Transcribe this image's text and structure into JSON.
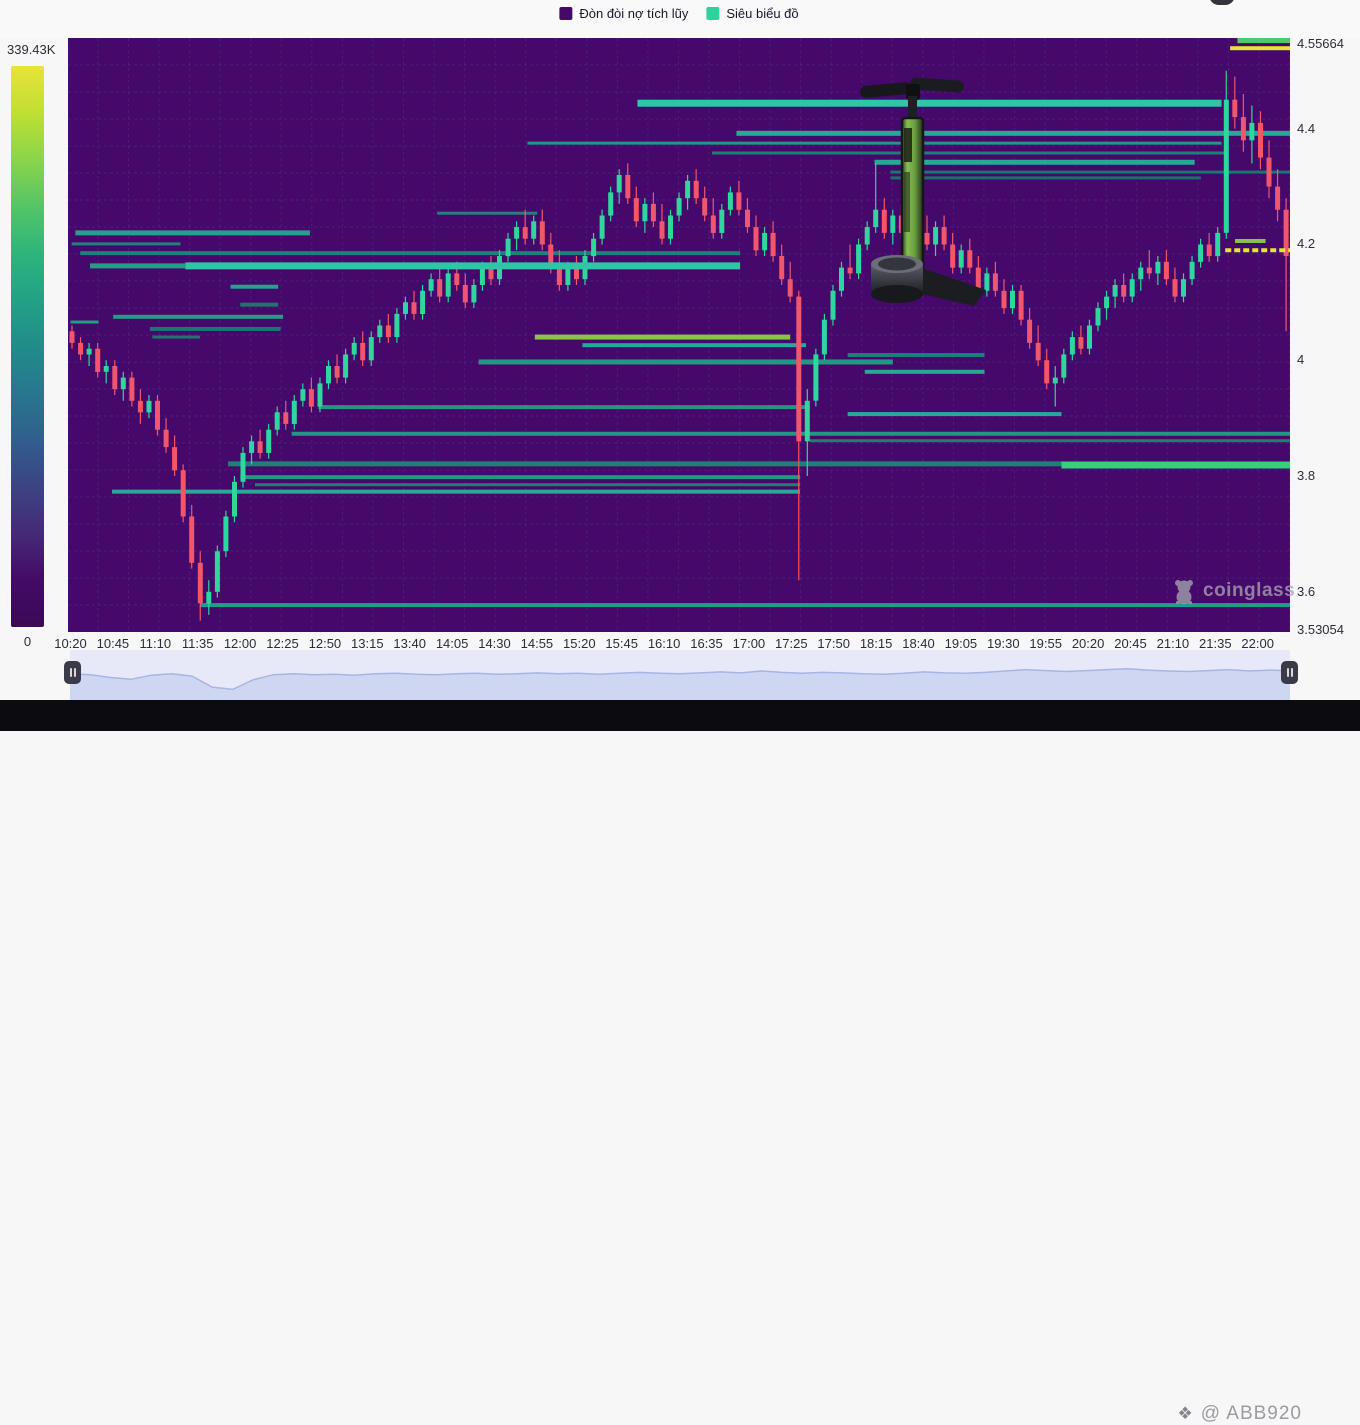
{
  "legend": {
    "items": [
      {
        "label": "Đòn đòi nợ tích lũy",
        "color": "#45096b"
      },
      {
        "label": "Siêu biểu đồ",
        "color": "#2bd49c"
      }
    ]
  },
  "colorbar": {
    "max_label": "339.43K",
    "min_label": "0",
    "gradient": [
      "#e8e337",
      "#c0df33",
      "#8bd54a",
      "#54c568",
      "#2fb47c",
      "#23a185",
      "#218c8a",
      "#27778e",
      "#315e8c",
      "#3d4382",
      "#452a77",
      "#440a67",
      "#3a0a54"
    ]
  },
  "watermarks": {
    "coinglass": "coinglass",
    "user": "@ ABB920",
    "gem_icon": "❖"
  },
  "chart_data": {
    "type": "candlestick-with-liquidation-heatmap-lines",
    "title": "",
    "price_axis": {
      "min": 3.53054,
      "max": 4.55664,
      "labels": [
        {
          "text": "4.55664",
          "price": 4.55664
        },
        {
          "text": "4.4",
          "price": 4.4
        },
        {
          "text": "4.2",
          "price": 4.2
        },
        {
          "text": "4",
          "price": 4.0
        },
        {
          "text": "3.8",
          "price": 3.8
        },
        {
          "text": "3.6",
          "price": 3.6
        },
        {
          "text": "3.53054",
          "price": 3.53054
        }
      ]
    },
    "x_labels": [
      "10:20",
      "10:45",
      "11:10",
      "11:35",
      "12:00",
      "12:25",
      "12:50",
      "13:15",
      "13:40",
      "14:05",
      "14:30",
      "14:55",
      "15:20",
      "15:45",
      "16:10",
      "16:35",
      "17:00",
      "17:25",
      "17:50",
      "18:15",
      "18:40",
      "19:05",
      "19:30",
      "19:55",
      "20:20",
      "20:45",
      "21:10",
      "21:35",
      "22:00"
    ],
    "colors": {
      "up": "#2fd69e",
      "down": "#f2566b",
      "background": "#45096b"
    },
    "candles": [
      [
        4.05,
        4.06,
        4.02,
        4.03
      ],
      [
        4.03,
        4.04,
        4.0,
        4.01
      ],
      [
        4.01,
        4.03,
        3.99,
        4.02
      ],
      [
        4.02,
        4.03,
        3.97,
        3.98
      ],
      [
        3.98,
        4.0,
        3.96,
        3.99
      ],
      [
        3.99,
        4.0,
        3.94,
        3.95
      ],
      [
        3.95,
        3.98,
        3.93,
        3.97
      ],
      [
        3.97,
        3.98,
        3.92,
        3.93
      ],
      [
        3.93,
        3.95,
        3.89,
        3.91
      ],
      [
        3.91,
        3.94,
        3.9,
        3.93
      ],
      [
        3.93,
        3.94,
        3.87,
        3.88
      ],
      [
        3.88,
        3.9,
        3.84,
        3.85
      ],
      [
        3.85,
        3.87,
        3.8,
        3.81
      ],
      [
        3.81,
        3.82,
        3.72,
        3.73
      ],
      [
        3.73,
        3.75,
        3.64,
        3.65
      ],
      [
        3.65,
        3.67,
        3.55,
        3.58
      ],
      [
        3.58,
        3.62,
        3.56,
        3.6
      ],
      [
        3.6,
        3.68,
        3.59,
        3.67
      ],
      [
        3.67,
        3.74,
        3.66,
        3.73
      ],
      [
        3.73,
        3.8,
        3.72,
        3.79
      ],
      [
        3.79,
        3.85,
        3.78,
        3.84
      ],
      [
        3.84,
        3.87,
        3.82,
        3.86
      ],
      [
        3.86,
        3.88,
        3.83,
        3.84
      ],
      [
        3.84,
        3.89,
        3.83,
        3.88
      ],
      [
        3.88,
        3.92,
        3.87,
        3.91
      ],
      [
        3.91,
        3.93,
        3.88,
        3.89
      ],
      [
        3.89,
        3.94,
        3.88,
        3.93
      ],
      [
        3.93,
        3.96,
        3.92,
        3.95
      ],
      [
        3.95,
        3.97,
        3.91,
        3.92
      ],
      [
        3.92,
        3.97,
        3.91,
        3.96
      ],
      [
        3.96,
        4.0,
        3.95,
        3.99
      ],
      [
        3.99,
        4.01,
        3.96,
        3.97
      ],
      [
        3.97,
        4.02,
        3.96,
        4.01
      ],
      [
        4.01,
        4.04,
        4.0,
        4.03
      ],
      [
        4.03,
        4.05,
        3.99,
        4.0
      ],
      [
        4.0,
        4.05,
        3.99,
        4.04
      ],
      [
        4.04,
        4.07,
        4.03,
        4.06
      ],
      [
        4.06,
        4.08,
        4.03,
        4.04
      ],
      [
        4.04,
        4.09,
        4.03,
        4.08
      ],
      [
        4.08,
        4.11,
        4.07,
        4.1
      ],
      [
        4.1,
        4.12,
        4.07,
        4.08
      ],
      [
        4.08,
        4.13,
        4.07,
        4.12
      ],
      [
        4.12,
        4.15,
        4.11,
        4.14
      ],
      [
        4.14,
        4.16,
        4.1,
        4.11
      ],
      [
        4.11,
        4.16,
        4.1,
        4.15
      ],
      [
        4.15,
        4.17,
        4.12,
        4.13
      ],
      [
        4.13,
        4.15,
        4.09,
        4.1
      ],
      [
        4.1,
        4.14,
        4.09,
        4.13
      ],
      [
        4.13,
        4.17,
        4.12,
        4.16
      ],
      [
        4.16,
        4.18,
        4.13,
        4.14
      ],
      [
        4.14,
        4.19,
        4.13,
        4.18
      ],
      [
        4.18,
        4.22,
        4.17,
        4.21
      ],
      [
        4.21,
        4.24,
        4.19,
        4.23
      ],
      [
        4.23,
        4.26,
        4.2,
        4.21
      ],
      [
        4.21,
        4.25,
        4.2,
        4.24
      ],
      [
        4.24,
        4.26,
        4.19,
        4.2
      ],
      [
        4.2,
        4.22,
        4.15,
        4.16
      ],
      [
        4.16,
        4.19,
        4.12,
        4.13
      ],
      [
        4.13,
        4.17,
        4.12,
        4.16
      ],
      [
        4.16,
        4.18,
        4.13,
        4.14
      ],
      [
        4.14,
        4.19,
        4.13,
        4.18
      ],
      [
        4.18,
        4.22,
        4.17,
        4.21
      ],
      [
        4.21,
        4.26,
        4.2,
        4.25
      ],
      [
        4.25,
        4.3,
        4.24,
        4.29
      ],
      [
        4.29,
        4.33,
        4.27,
        4.32
      ],
      [
        4.32,
        4.34,
        4.27,
        4.28
      ],
      [
        4.28,
        4.3,
        4.23,
        4.24
      ],
      [
        4.24,
        4.28,
        4.22,
        4.27
      ],
      [
        4.27,
        4.29,
        4.23,
        4.24
      ],
      [
        4.24,
        4.27,
        4.2,
        4.21
      ],
      [
        4.21,
        4.26,
        4.2,
        4.25
      ],
      [
        4.25,
        4.29,
        4.24,
        4.28
      ],
      [
        4.28,
        4.32,
        4.26,
        4.31
      ],
      [
        4.31,
        4.33,
        4.27,
        4.28
      ],
      [
        4.28,
        4.3,
        4.24,
        4.25
      ],
      [
        4.25,
        4.28,
        4.21,
        4.22
      ],
      [
        4.22,
        4.27,
        4.21,
        4.26
      ],
      [
        4.26,
        4.3,
        4.25,
        4.29
      ],
      [
        4.29,
        4.31,
        4.25,
        4.26
      ],
      [
        4.26,
        4.28,
        4.22,
        4.23
      ],
      [
        4.23,
        4.25,
        4.18,
        4.19
      ],
      [
        4.19,
        4.23,
        4.18,
        4.22
      ],
      [
        4.22,
        4.24,
        4.17,
        4.18
      ],
      [
        4.18,
        4.2,
        4.13,
        4.14
      ],
      [
        4.14,
        4.17,
        4.1,
        4.11
      ],
      [
        4.11,
        4.12,
        3.62,
        3.86
      ],
      [
        3.86,
        3.95,
        3.8,
        3.93
      ],
      [
        3.93,
        4.02,
        3.92,
        4.01
      ],
      [
        4.01,
        4.08,
        4.0,
        4.07
      ],
      [
        4.07,
        4.13,
        4.06,
        4.12
      ],
      [
        4.12,
        4.17,
        4.11,
        4.16
      ],
      [
        4.16,
        4.2,
        4.14,
        4.15
      ],
      [
        4.15,
        4.21,
        4.14,
        4.2
      ],
      [
        4.2,
        4.24,
        4.19,
        4.23
      ],
      [
        4.23,
        4.34,
        4.22,
        4.26
      ],
      [
        4.26,
        4.28,
        4.21,
        4.22
      ],
      [
        4.22,
        4.26,
        4.2,
        4.25
      ],
      [
        4.25,
        4.27,
        4.21,
        4.22
      ],
      [
        4.22,
        4.24,
        4.17,
        4.18
      ],
      [
        4.18,
        4.23,
        4.17,
        4.22
      ],
      [
        4.22,
        4.25,
        4.19,
        4.2
      ],
      [
        4.2,
        4.24,
        4.18,
        4.23
      ],
      [
        4.23,
        4.25,
        4.19,
        4.2
      ],
      [
        4.2,
        4.22,
        4.15,
        4.16
      ],
      [
        4.16,
        4.2,
        4.15,
        4.19
      ],
      [
        4.19,
        4.21,
        4.15,
        4.16
      ],
      [
        4.16,
        4.18,
        4.11,
        4.12
      ],
      [
        4.12,
        4.16,
        4.11,
        4.15
      ],
      [
        4.15,
        4.17,
        4.11,
        4.12
      ],
      [
        4.12,
        4.14,
        4.08,
        4.09
      ],
      [
        4.09,
        4.13,
        4.08,
        4.12
      ],
      [
        4.12,
        4.13,
        4.06,
        4.07
      ],
      [
        4.07,
        4.09,
        4.02,
        4.03
      ],
      [
        4.03,
        4.06,
        3.99,
        4.0
      ],
      [
        4.0,
        4.02,
        3.95,
        3.96
      ],
      [
        3.96,
        3.99,
        3.92,
        3.97
      ],
      [
        3.97,
        4.02,
        3.96,
        4.01
      ],
      [
        4.01,
        4.05,
        4.0,
        4.04
      ],
      [
        4.04,
        4.06,
        4.01,
        4.02
      ],
      [
        4.02,
        4.07,
        4.01,
        4.06
      ],
      [
        4.06,
        4.1,
        4.05,
        4.09
      ],
      [
        4.09,
        4.12,
        4.07,
        4.11
      ],
      [
        4.11,
        4.14,
        4.09,
        4.13
      ],
      [
        4.13,
        4.15,
        4.1,
        4.11
      ],
      [
        4.11,
        4.15,
        4.1,
        4.14
      ],
      [
        4.14,
        4.17,
        4.12,
        4.16
      ],
      [
        4.16,
        4.19,
        4.14,
        4.15
      ],
      [
        4.15,
        4.18,
        4.13,
        4.17
      ],
      [
        4.17,
        4.19,
        4.13,
        4.14
      ],
      [
        4.14,
        4.16,
        4.1,
        4.11
      ],
      [
        4.11,
        4.15,
        4.1,
        4.14
      ],
      [
        4.14,
        4.18,
        4.13,
        4.17
      ],
      [
        4.17,
        4.21,
        4.16,
        4.2
      ],
      [
        4.2,
        4.22,
        4.17,
        4.18
      ],
      [
        4.18,
        4.23,
        4.17,
        4.22
      ],
      [
        4.22,
        4.5,
        4.21,
        4.45
      ],
      [
        4.45,
        4.49,
        4.4,
        4.42
      ],
      [
        4.42,
        4.46,
        4.36,
        4.38
      ],
      [
        4.38,
        4.44,
        4.34,
        4.41
      ],
      [
        4.41,
        4.43,
        4.33,
        4.35
      ],
      [
        4.35,
        4.38,
        4.28,
        4.3
      ],
      [
        4.3,
        4.33,
        4.24,
        4.26
      ],
      [
        4.26,
        4.28,
        4.05,
        4.18
      ]
    ],
    "liquidation_lines": [
      {
        "price": 4.553,
        "x0": 0.957,
        "x1": 1.0,
        "h": 6,
        "color": "#55c76a",
        "front": true
      },
      {
        "price": 4.539,
        "x0": 0.951,
        "x1": 1.0,
        "h": 4,
        "color": "#e8e337",
        "front": true
      },
      {
        "price": 4.444,
        "x0": 0.466,
        "x1": 0.944,
        "h": 7,
        "color": "#2cc8a5",
        "front": true
      },
      {
        "price": 4.392,
        "x0": 0.547,
        "x1": 1.0,
        "h": 5,
        "color": "#28a995"
      },
      {
        "price": 4.375,
        "x0": 0.376,
        "x1": 0.944,
        "h": 3,
        "color": "#259684"
      },
      {
        "price": 4.358,
        "x0": 0.527,
        "x1": 0.947,
        "h": 3,
        "color": "#1f7e77"
      },
      {
        "price": 4.342,
        "x0": 0.66,
        "x1": 0.922,
        "h": 5,
        "color": "#28a995"
      },
      {
        "price": 4.325,
        "x0": 0.673,
        "x1": 1.0,
        "h": 3,
        "color": "#1e746f"
      },
      {
        "price": 4.315,
        "x0": 0.673,
        "x1": 0.927,
        "h": 3,
        "color": "#1d6e6b"
      },
      {
        "price": 4.254,
        "x0": 0.302,
        "x1": 0.384,
        "h": 3,
        "color": "#20837a"
      },
      {
        "price": 4.22,
        "x0": 0.006,
        "x1": 0.198,
        "h": 5,
        "color": "#279f8b"
      },
      {
        "price": 4.201,
        "x0": 0.003,
        "x1": 0.092,
        "h": 3,
        "color": "#20837a"
      },
      {
        "price": 4.185,
        "x0": 0.01,
        "x1": 0.55,
        "h": 4,
        "color": "#217f78"
      },
      {
        "price": 4.163,
        "x0": 0.018,
        "x1": 0.096,
        "h": 5,
        "color": "#279b89"
      },
      {
        "price": 4.163,
        "x0": 0.096,
        "x1": 0.55,
        "h": 7,
        "color": "#2cc8a5",
        "front": true
      },
      {
        "price": 4.127,
        "x0": 0.133,
        "x1": 0.172,
        "h": 4,
        "color": "#28a18d"
      },
      {
        "price": 4.096,
        "x0": 0.141,
        "x1": 0.172,
        "h": 4,
        "color": "#1e746f"
      },
      {
        "price": 4.075,
        "x0": 0.037,
        "x1": 0.176,
        "h": 4,
        "color": "#279b89"
      },
      {
        "price": 4.066,
        "x0": 0.002,
        "x1": 0.025,
        "h": 3,
        "color": "#279b89"
      },
      {
        "price": 4.054,
        "x0": 0.067,
        "x1": 0.174,
        "h": 4,
        "color": "#1e746f"
      },
      {
        "price": 4.04,
        "x0": 0.069,
        "x1": 0.108,
        "h": 3,
        "color": "#1e746f"
      },
      {
        "price": 4.04,
        "x0": 0.382,
        "x1": 0.591,
        "h": 5,
        "color": "#8bc34a",
        "front": true
      },
      {
        "price": 4.026,
        "x0": 0.421,
        "x1": 0.604,
        "h": 4,
        "color": "#28a995"
      },
      {
        "price": 4.009,
        "x0": 0.638,
        "x1": 0.75,
        "h": 4,
        "color": "#1f7e77"
      },
      {
        "price": 3.997,
        "x0": 0.336,
        "x1": 0.675,
        "h": 5,
        "color": "#259684"
      },
      {
        "price": 3.98,
        "x0": 0.652,
        "x1": 0.75,
        "h": 4,
        "color": "#28a995"
      },
      {
        "price": 3.919,
        "x0": 0.205,
        "x1": 0.607,
        "h": 4,
        "color": "#259684"
      },
      {
        "price": 3.907,
        "x0": 0.638,
        "x1": 0.813,
        "h": 4,
        "color": "#28a995"
      },
      {
        "price": 3.873,
        "x0": 0.183,
        "x1": 1.0,
        "h": 4,
        "color": "#259684"
      },
      {
        "price": 3.861,
        "x0": 0.607,
        "x1": 1.0,
        "h": 3,
        "color": "#1f7e77"
      },
      {
        "price": 3.821,
        "x0": 0.131,
        "x1": 0.813,
        "h": 5,
        "color": "#217f78"
      },
      {
        "price": 3.819,
        "x0": 0.813,
        "x1": 1.0,
        "h": 7,
        "color": "#35d07c",
        "front": true
      },
      {
        "price": 3.798,
        "x0": 0.141,
        "x1": 0.599,
        "h": 4,
        "color": "#259684"
      },
      {
        "price": 3.785,
        "x0": 0.153,
        "x1": 0.599,
        "h": 3,
        "color": "#1f7e77"
      },
      {
        "price": 3.773,
        "x0": 0.036,
        "x1": 0.599,
        "h": 4,
        "color": "#28a995"
      },
      {
        "price": 3.577,
        "x0": 0.108,
        "x1": 1.0,
        "h": 4,
        "color": "#279b89"
      },
      {
        "price": 4.19,
        "x0": 0.947,
        "x1": 1.0,
        "h": 4,
        "color": "#e8e337",
        "front": true,
        "dashed": true
      },
      {
        "price": 4.206,
        "x0": 0.955,
        "x1": 0.98,
        "h": 4,
        "color": "#8bc34a",
        "front": true
      }
    ],
    "navigator": {
      "values": [
        0.57,
        0.55,
        0.49,
        0.45,
        0.54,
        0.57,
        0.52,
        0.28,
        0.23,
        0.44,
        0.55,
        0.57,
        0.55,
        0.56,
        0.54,
        0.57,
        0.58,
        0.56,
        0.55,
        0.57,
        0.58,
        0.56,
        0.57,
        0.59,
        0.57,
        0.58,
        0.56,
        0.58,
        0.6,
        0.58,
        0.57,
        0.59,
        0.61,
        0.59,
        0.63,
        0.6,
        0.58,
        0.6,
        0.59,
        0.57,
        0.56,
        0.58,
        0.61,
        0.59,
        0.58,
        0.6,
        0.63,
        0.66,
        0.64,
        0.62,
        0.64,
        0.66,
        0.68,
        0.65,
        0.63,
        0.62,
        0.64,
        0.66,
        0.63,
        0.65,
        0.64
      ]
    }
  }
}
